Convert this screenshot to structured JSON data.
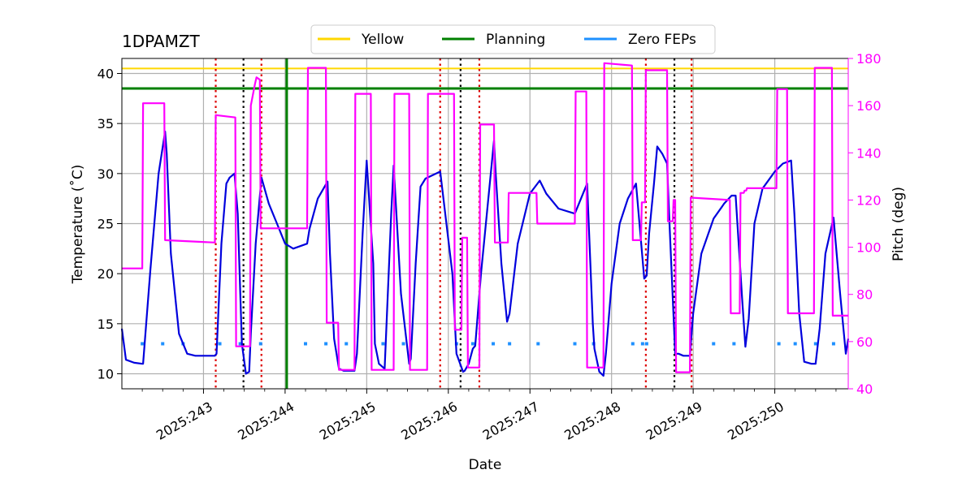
{
  "chart_data": {
    "type": "line",
    "title": "1DPAMZT",
    "xlabel": "Date",
    "ylabel_left": "Temperature ($^\\circ$C)",
    "ylabel_left_display": "Temperature (˚C)",
    "ylabel_right": "Pitch (deg)",
    "xlim": [
      242.0,
      250.9
    ],
    "ylim_left": [
      8.5,
      41.5
    ],
    "ylim_right": [
      40,
      180
    ],
    "x_ticks": [
      243,
      244,
      245,
      246,
      247,
      248,
      249,
      250
    ],
    "x_tick_labels": [
      "2025:243",
      "2025:244",
      "2025:245",
      "2025:246",
      "2025:247",
      "2025:248",
      "2025:249",
      "2025:250"
    ],
    "y_ticks_left": [
      10,
      15,
      20,
      25,
      30,
      35,
      40
    ],
    "y_ticks_right": [
      40,
      60,
      80,
      100,
      120,
      140,
      160,
      180
    ],
    "grid": true,
    "legend": {
      "placement": "top-center",
      "entries": [
        {
          "label": "Yellow",
          "color": "#ffd700"
        },
        {
          "label": "Planning",
          "color": "#008000"
        },
        {
          "label": "Zero FEPs",
          "color": "#1e90ff"
        }
      ]
    },
    "colors": {
      "temperature": "#0000dd",
      "pitch": "#ff00ff",
      "yellow": "#ffd700",
      "planning": "#008000",
      "zero_feps": "#1e90ff",
      "red_markers": "#dd0000",
      "black_markers": "#000000",
      "grid": "#b0b0b0"
    },
    "yellow_limit": 40.5,
    "planning_limit": 38.5,
    "planning_vline_x": 244.02,
    "red_dotted_vlines": [
      243.15,
      243.71,
      245.9,
      246.38,
      248.42,
      248.98
    ],
    "black_dotted_vlines": [
      243.49,
      246.15,
      248.77
    ],
    "zero_feps": {
      "y": 13.0,
      "x": [
        242.25,
        242.5,
        242.75,
        243.2,
        243.45,
        243.7,
        244.25,
        244.5,
        244.75,
        245.2,
        245.45,
        246.1,
        246.3,
        246.55,
        246.75,
        247.1,
        247.55,
        247.78,
        248.26,
        248.38,
        248.43,
        249.25,
        249.5,
        250.05,
        250.25,
        250.5,
        250.72
      ]
    },
    "series": [
      {
        "name": "1DPAMZT",
        "axis": "left",
        "x": [
          242.0,
          242.05,
          242.15,
          242.25,
          242.26,
          242.35,
          242.45,
          242.53,
          242.55,
          242.6,
          242.7,
          242.8,
          242.9,
          243.14,
          243.16,
          243.22,
          243.28,
          243.32,
          243.38,
          243.42,
          243.47,
          243.52,
          243.56,
          243.58,
          243.64,
          243.71,
          243.8,
          243.9,
          244.0,
          244.1,
          244.27,
          244.3,
          244.4,
          244.52,
          244.55,
          244.6,
          244.66,
          244.72,
          244.85,
          244.88,
          244.95,
          245.0,
          245.08,
          245.1,
          245.15,
          245.22,
          245.3,
          245.33,
          245.42,
          245.52,
          245.54,
          245.6,
          245.66,
          245.72,
          245.9,
          246.05,
          246.1,
          246.18,
          246.2,
          246.25,
          246.3,
          246.33,
          246.4,
          246.56,
          246.58,
          246.65,
          246.72,
          246.75,
          246.85,
          247.0,
          247.12,
          247.2,
          247.35,
          247.55,
          247.7,
          247.77,
          247.79,
          247.85,
          247.9,
          247.93,
          248.0,
          248.1,
          248.2,
          248.3,
          248.4,
          248.43,
          248.46,
          248.52,
          248.56,
          248.62,
          248.68,
          248.71,
          248.78,
          248.82,
          248.88,
          248.96,
          249.0,
          249.1,
          249.25,
          249.38,
          249.47,
          249.52,
          249.6,
          249.64,
          249.68,
          249.75,
          249.85,
          250.0,
          250.1,
          250.2,
          250.24,
          250.3,
          250.36,
          250.45,
          250.5,
          250.55,
          250.62,
          250.72,
          250.8,
          250.87,
          250.9
        ],
        "values": [
          14.5,
          11.4,
          11.1,
          11.0,
          11.0,
          20.5,
          30.0,
          34.2,
          32.0,
          22.0,
          14.0,
          12.0,
          11.8,
          11.8,
          12.0,
          23.0,
          29.0,
          29.6,
          30.0,
          26.0,
          13.0,
          10.0,
          10.2,
          14.0,
          23.0,
          29.6,
          27.0,
          25.0,
          23.0,
          22.5,
          23.0,
          24.5,
          27.5,
          29.2,
          22.0,
          13.5,
          10.5,
          10.3,
          10.3,
          12.0,
          24.0,
          31.3,
          21.0,
          13.0,
          11.0,
          10.5,
          26.0,
          30.8,
          18.0,
          11.0,
          11.5,
          21.0,
          28.7,
          29.5,
          30.2,
          20.0,
          12.0,
          10.2,
          10.3,
          11.0,
          12.5,
          12.8,
          20.0,
          33.3,
          30.0,
          21.0,
          15.2,
          16.0,
          23.0,
          28.0,
          29.3,
          28.0,
          26.5,
          26.0,
          29.0,
          15.0,
          12.5,
          10.2,
          9.8,
          12.0,
          19.0,
          25.0,
          27.5,
          29.0,
          19.5,
          19.8,
          24.0,
          29.0,
          32.7,
          32.0,
          31.0,
          25.0,
          12.0,
          12.0,
          11.8,
          11.8,
          16.0,
          22.0,
          25.5,
          27.0,
          27.8,
          27.8,
          17.5,
          12.7,
          15.5,
          25.0,
          28.5,
          30.2,
          31.0,
          31.3,
          26.0,
          16.0,
          11.2,
          11.0,
          11.0,
          14.5,
          22.0,
          25.6,
          18.0,
          12.0,
          13.5
        ]
      },
      {
        "name": "Pitch (deg)",
        "axis": "right",
        "x": [
          242.0,
          242.25,
          242.26,
          242.52,
          242.53,
          243.14,
          243.15,
          243.39,
          243.4,
          243.57,
          243.58,
          243.63,
          243.65,
          243.69,
          243.7,
          244.27,
          244.28,
          244.5,
          244.51,
          244.65,
          244.66,
          244.85,
          244.86,
          245.05,
          245.06,
          245.33,
          245.34,
          245.52,
          245.53,
          245.74,
          245.75,
          246.07,
          246.08,
          246.16,
          246.17,
          246.23,
          246.24,
          246.38,
          246.39,
          246.56,
          246.57,
          246.73,
          246.74,
          247.08,
          247.09,
          247.55,
          247.56,
          247.69,
          247.7,
          247.9,
          247.91,
          248.25,
          248.26,
          248.36,
          248.37,
          248.41,
          248.42,
          248.68,
          248.69,
          248.75,
          248.76,
          248.78,
          248.79,
          248.96,
          248.97,
          249.45,
          249.46,
          249.57,
          249.58,
          249.62,
          249.63,
          249.65,
          249.66,
          250.02,
          250.03,
          250.15,
          250.16,
          250.48,
          250.49,
          250.7,
          250.71,
          250.9
        ],
        "values": [
          91,
          91,
          161,
          161,
          103,
          102,
          156,
          155,
          58,
          58,
          160,
          169,
          172,
          171,
          108,
          108,
          176,
          176,
          68,
          68,
          48,
          48,
          165,
          165,
          48,
          48,
          165,
          165,
          48,
          48,
          165,
          165,
          65,
          65,
          104,
          104,
          49,
          49,
          152,
          152,
          102,
          102,
          123,
          123,
          110,
          110,
          166,
          166,
          49,
          49,
          178,
          177,
          103,
          103,
          119,
          119,
          175,
          175,
          111,
          111,
          120,
          120,
          47,
          47,
          121,
          120,
          72,
          72,
          123,
          123,
          124,
          124,
          125,
          125,
          167,
          167,
          72,
          72,
          176,
          176,
          71,
          71
        ]
      }
    ]
  }
}
